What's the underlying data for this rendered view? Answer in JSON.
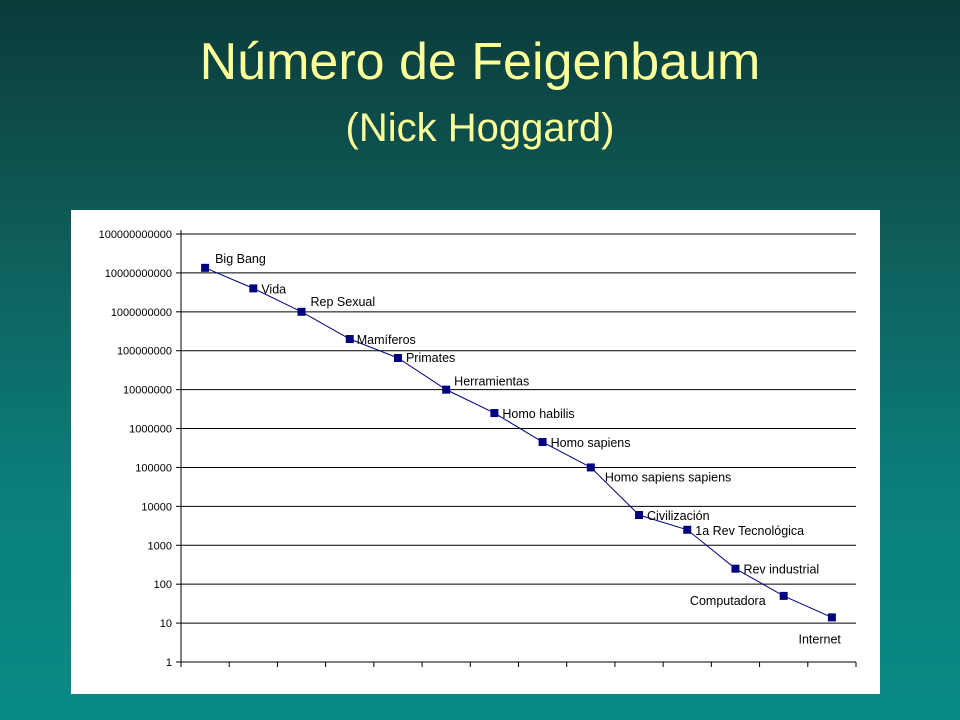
{
  "slide": {
    "title": "Número de Feigenbaum",
    "subtitle": "(Nick Hoggard)"
  },
  "chart_data": {
    "type": "line",
    "title": "",
    "xlabel": "",
    "ylabel": "",
    "y_scale": "log",
    "ylim": [
      1,
      100000000000
    ],
    "y_ticks": [
      "1",
      "10",
      "100",
      "1000",
      "10000",
      "100000",
      "1000000",
      "10000000",
      "100000000",
      "1000000000",
      "10000000000",
      "100000000000"
    ],
    "grid": "horizontal",
    "legend": "none",
    "series_color": "#000080",
    "categories": [
      "Big Bang",
      "Vida",
      "Rep Sexual",
      "Mamíferos",
      "Primates",
      "Herramientas",
      "Homo habilis",
      "Homo sapiens",
      "Homo sapiens sapiens",
      "Civilización",
      "1a Rev Tecnológica",
      "Rev industrial",
      "Computadora",
      "Internet"
    ],
    "values": [
      13500000000,
      4000000000,
      1000000000,
      200000000,
      65000000,
      10000000,
      2500000,
      450000,
      100000,
      6000,
      2500,
      250,
      50,
      14
    ]
  }
}
